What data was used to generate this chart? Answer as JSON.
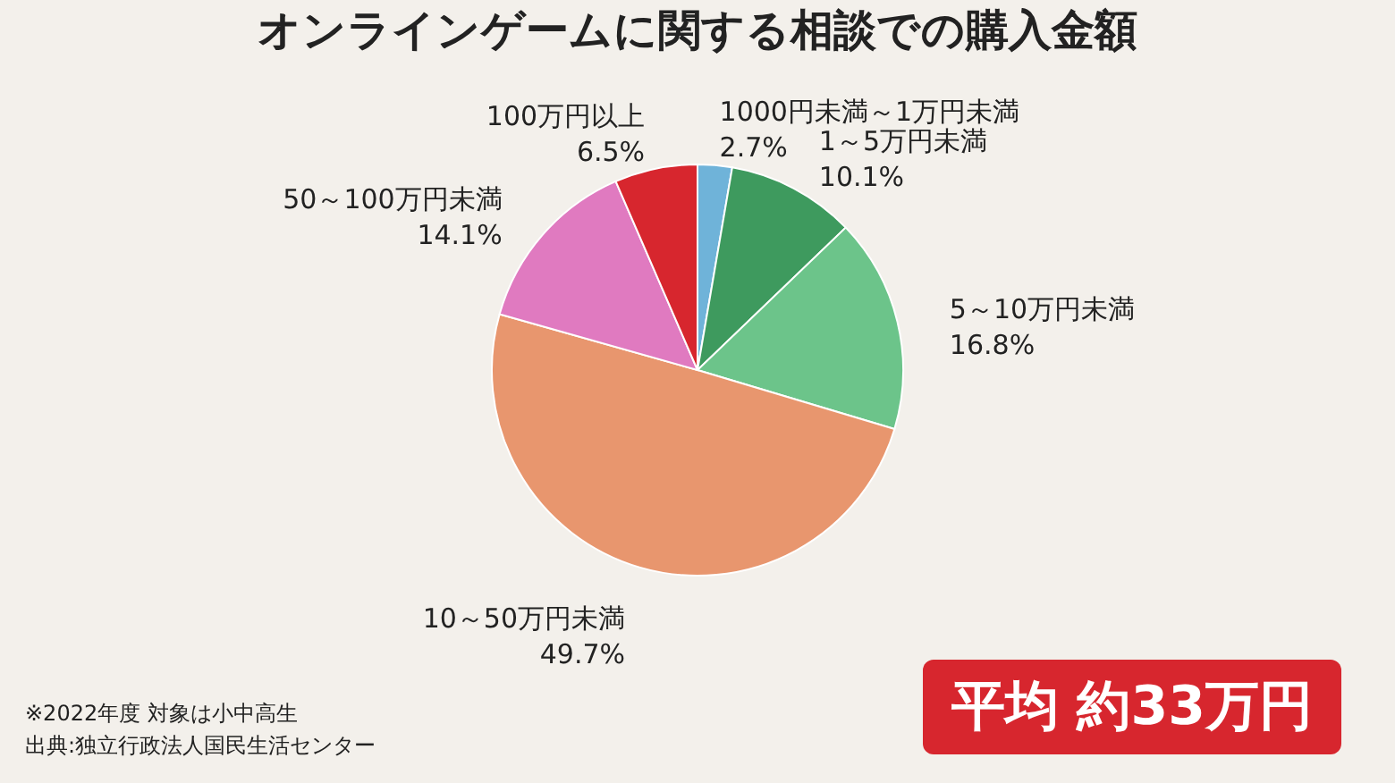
{
  "chart_data": {
    "type": "pie",
    "title": "オンラインゲームに関する相談での購入金額",
    "categories": [
      "1000円未満～1万円未満",
      "1～5万円未満",
      "5～10万円未満",
      "10～50万円未満",
      "50～100万円未満",
      "100万円以上"
    ],
    "values": [
      2.7,
      10.1,
      16.8,
      49.7,
      14.1,
      6.5
    ],
    "colors": [
      "#6fb3d9",
      "#3e9a5e",
      "#6cc48a",
      "#e8966e",
      "#e07ac0",
      "#d7262e"
    ],
    "value_labels": [
      "2.7%",
      "10.1%",
      "16.8%",
      "49.7%",
      "14.1%",
      "6.5%"
    ],
    "annotations": [
      "※2022年度 対象は小中高生",
      "出典:独立行政法人国民生活センター",
      "平均 約33万円"
    ]
  }
}
